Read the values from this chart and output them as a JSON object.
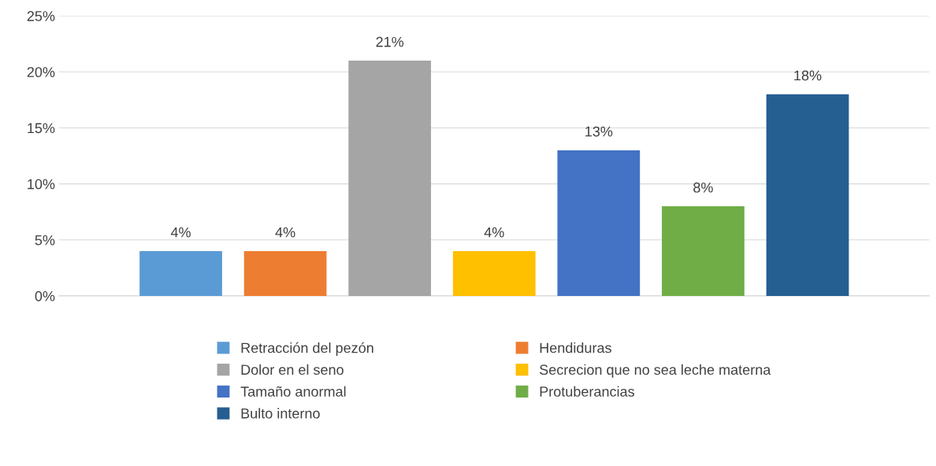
{
  "chart_data": {
    "type": "bar",
    "categories": [
      null
    ],
    "series": [
      {
        "name": "Retracción del pezón",
        "color": "#5b9bd5",
        "values": [
          4
        ],
        "value_labels": [
          "4%"
        ]
      },
      {
        "name": "Hendiduras",
        "color": "#ed7d31",
        "values": [
          4
        ],
        "value_labels": [
          "4%"
        ]
      },
      {
        "name": "Dolor en el seno",
        "color": "#a5a5a5",
        "values": [
          21
        ],
        "value_labels": [
          "21%"
        ]
      },
      {
        "name": "Secrecion que no sea leche materna",
        "color": "#ffc000",
        "values": [
          4
        ],
        "value_labels": [
          "4%"
        ]
      },
      {
        "name": "Tamaño anormal",
        "color": "#4472c4",
        "values": [
          13
        ],
        "value_labels": [
          "13%"
        ]
      },
      {
        "name": "Protuberancias",
        "color": "#70ad47",
        "values": [
          8
        ],
        "value_labels": [
          "8%"
        ]
      },
      {
        "name": "Bulto interno",
        "color": "#255e91",
        "values": [
          18
        ],
        "value_labels": [
          "18%"
        ]
      }
    ],
    "ylim": [
      0,
      25
    ],
    "yticks": [
      {
        "value": 0,
        "label": "0%"
      },
      {
        "value": 5,
        "label": "5%"
      },
      {
        "value": 10,
        "label": "10%"
      },
      {
        "value": 15,
        "label": "15%"
      },
      {
        "value": 20,
        "label": "20%"
      },
      {
        "value": 25,
        "label": "25%"
      }
    ],
    "grid": "y",
    "legend": "bottom"
  }
}
